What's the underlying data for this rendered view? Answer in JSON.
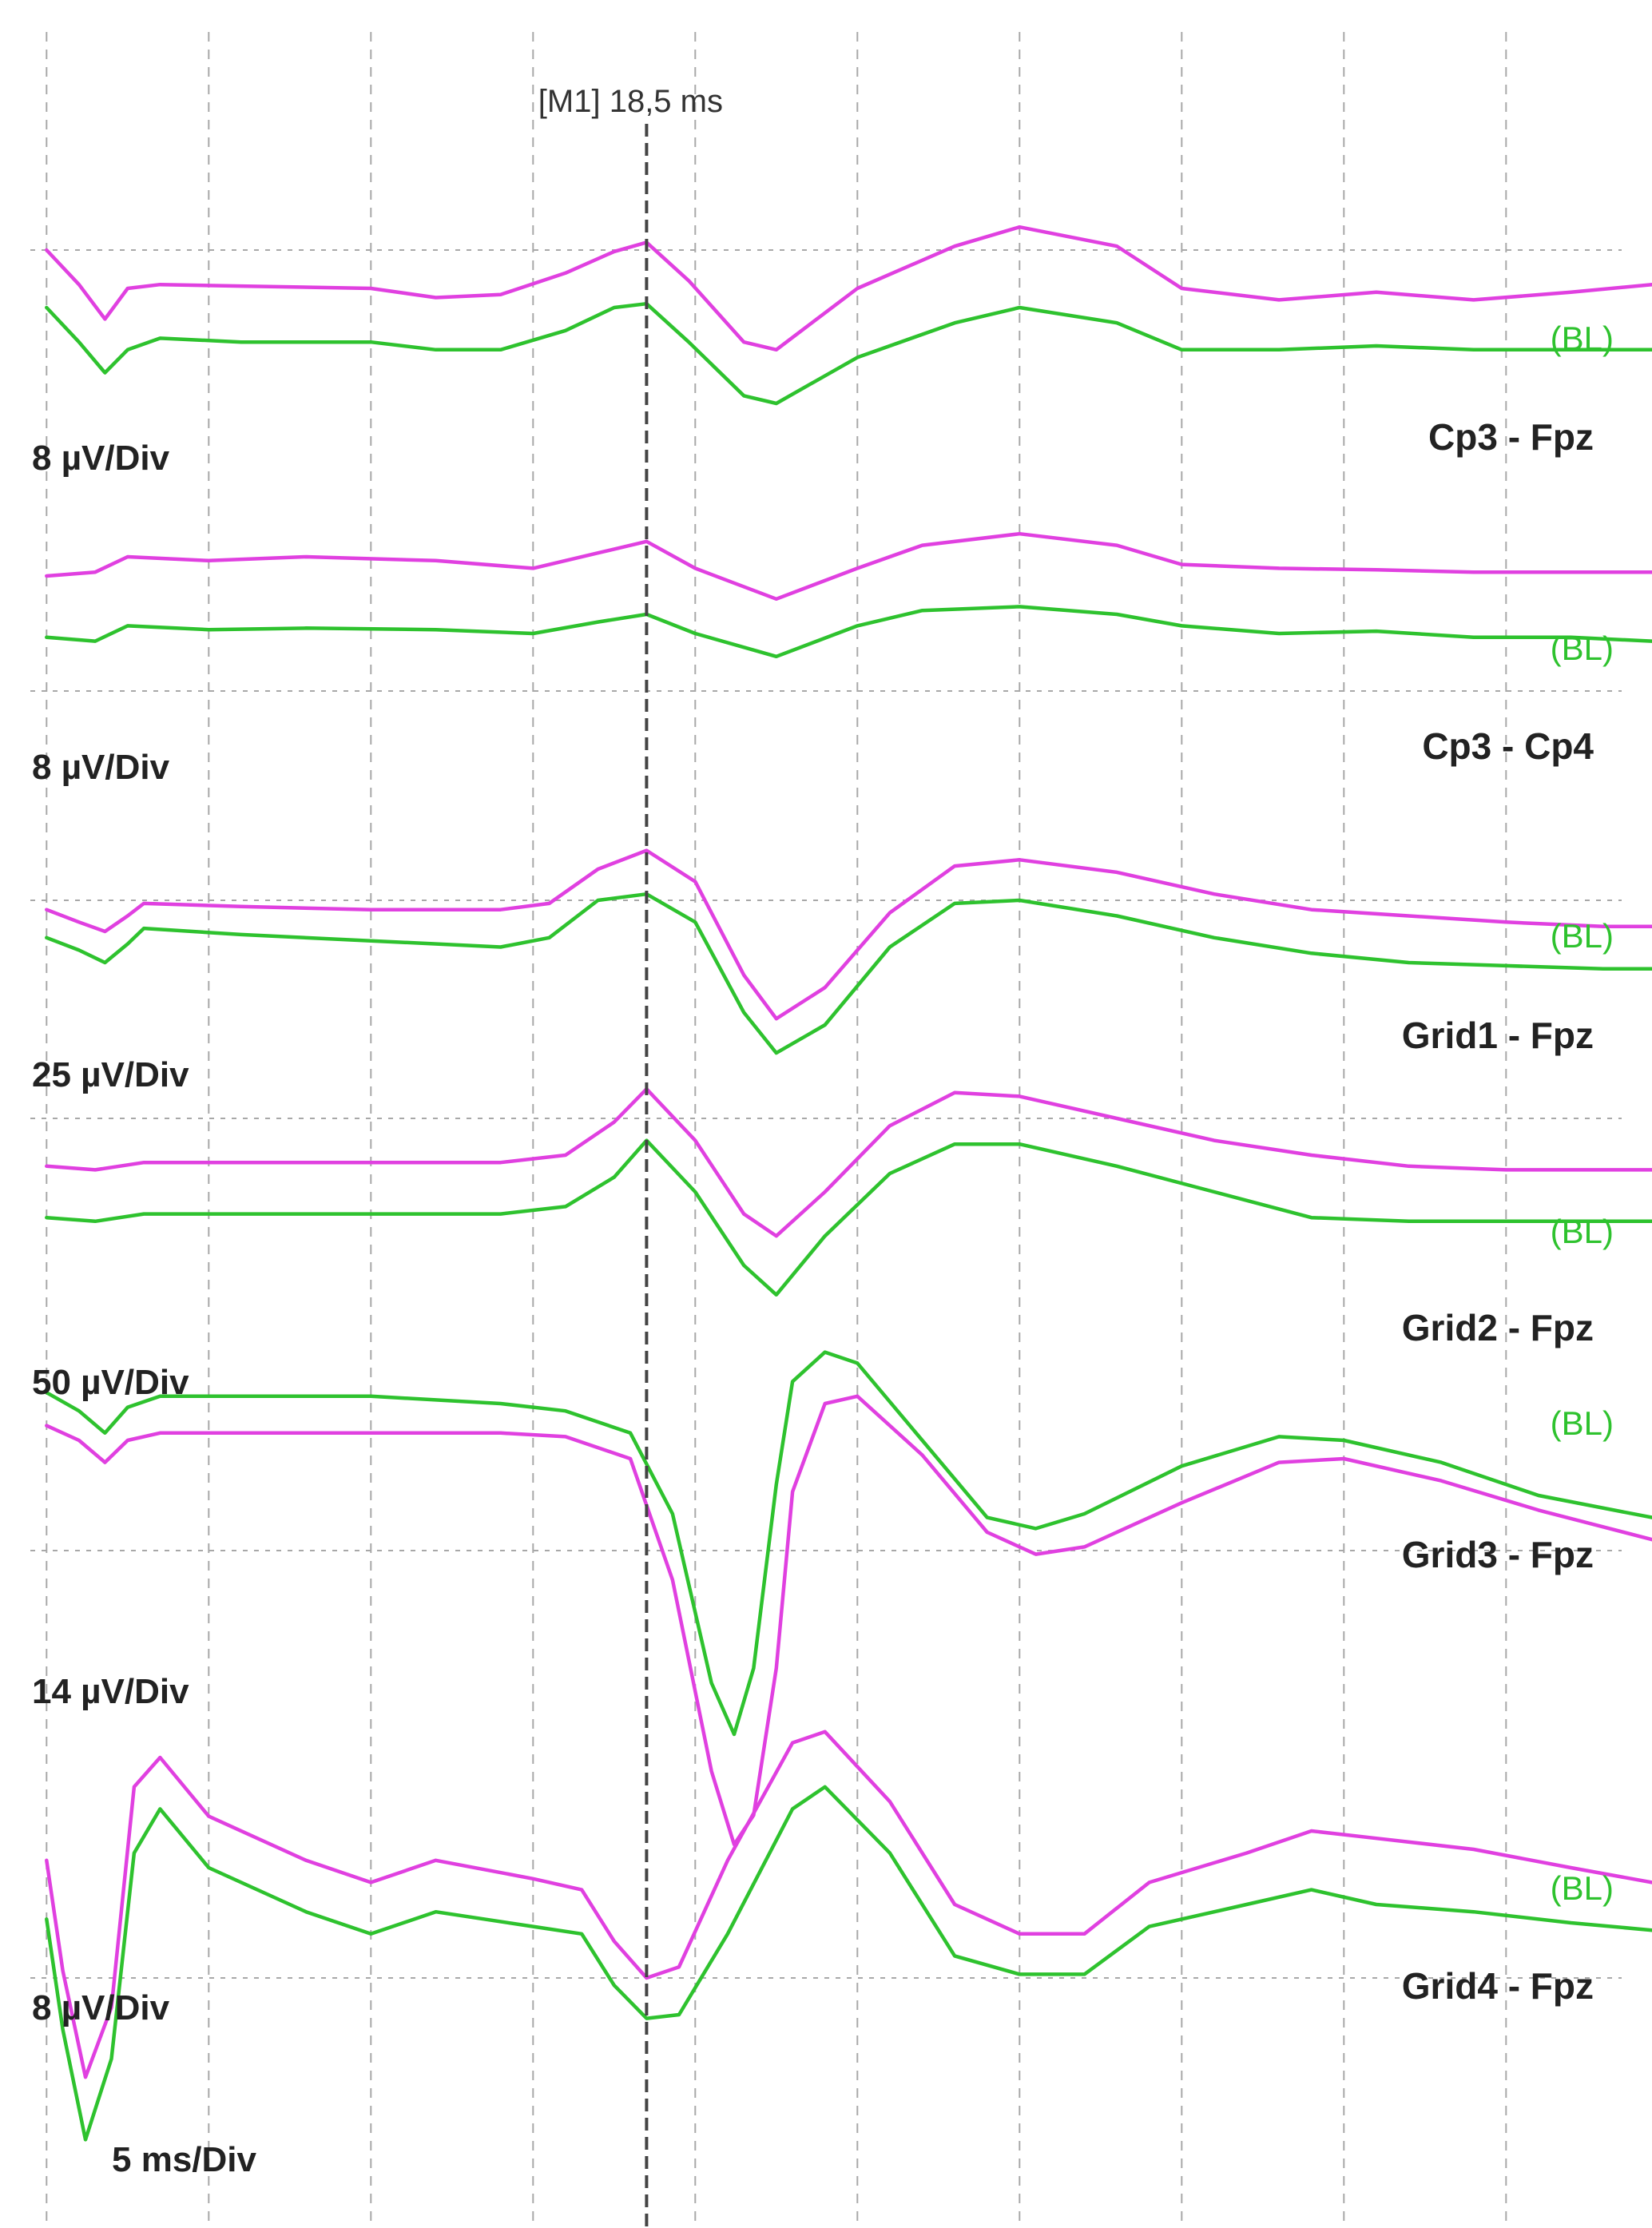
{
  "cursor": {
    "label": "[M1] 18,5 ms",
    "time_ms": 18.5
  },
  "time_base": {
    "label": "5 ms/Div",
    "ms_per_div": 5
  },
  "colors": {
    "trace_a": "#e040e0",
    "trace_b": "#2ec22e",
    "grid": "#a8a8a8",
    "cursor": "#444444",
    "text": "#222222"
  },
  "chart_data": {
    "type": "line",
    "x_unit": "ms",
    "xlim": [
      -0.5,
      49.5
    ],
    "grid": true,
    "channels": [
      {
        "name": "Cp3 - Fpz",
        "scale_label": "8 µV/Div",
        "baseline_label": "(BL)",
        "series": [
          {
            "color": "#e040e0",
            "x": [
              0,
              1,
              1.8,
              2.5,
              3.5,
              6,
              10,
              12,
              14,
              16,
              17.5,
              18.5,
              19.8,
              21.5,
              22.5,
              25,
              28,
              30,
              33,
              35,
              38,
              41,
              44,
              47,
              49.5
            ],
            "y": [
              0,
              -0.45,
              -0.9,
              -0.5,
              -0.45,
              -0.47,
              -0.5,
              -0.62,
              -0.58,
              -0.3,
              -0.02,
              0.1,
              -0.4,
              -1.2,
              -1.3,
              -0.5,
              0.05,
              0.3,
              0.05,
              -0.5,
              -0.65,
              -0.55,
              -0.65,
              -0.55,
              -0.45
            ]
          },
          {
            "color": "#2ec22e",
            "x": [
              0,
              1,
              1.8,
              2.5,
              3.5,
              6,
              10,
              12,
              14,
              16,
              17.5,
              18.5,
              19.8,
              21.5,
              22.5,
              25,
              28,
              30,
              33,
              35,
              38,
              41,
              44,
              47,
              49.5
            ],
            "y": [
              -0.75,
              -1.2,
              -1.6,
              -1.3,
              -1.15,
              -1.2,
              -1.2,
              -1.3,
              -1.3,
              -1.05,
              -0.75,
              -0.7,
              -1.2,
              -1.9,
              -2.0,
              -1.4,
              -0.95,
              -0.75,
              -0.95,
              -1.3,
              -1.3,
              -1.25,
              -1.3,
              -1.3,
              -1.3
            ]
          }
        ]
      },
      {
        "name": "Cp3 - Cp4",
        "scale_label": "8 µV/Div",
        "baseline_label": "(BL)",
        "series": [
          {
            "color": "#e040e0",
            "x": [
              0,
              1.5,
              2.5,
              5,
              8,
              12,
              15,
              17,
              18.5,
              20,
              22.5,
              25,
              27,
              30,
              33,
              35,
              38,
              41,
              44,
              47,
              49.5
            ],
            "y": [
              1.5,
              1.55,
              1.75,
              1.7,
              1.75,
              1.7,
              1.6,
              1.8,
              1.95,
              1.6,
              1.2,
              1.6,
              1.9,
              2.05,
              1.9,
              1.65,
              1.6,
              1.58,
              1.55,
              1.55,
              1.55
            ]
          },
          {
            "color": "#2ec22e",
            "x": [
              0,
              1.5,
              2.5,
              5,
              8,
              12,
              15,
              17,
              18.5,
              20,
              22.5,
              25,
              27,
              30,
              33,
              35,
              38,
              41,
              44,
              47,
              49.5
            ],
            "y": [
              0.7,
              0.65,
              0.85,
              0.8,
              0.82,
              0.8,
              0.75,
              0.9,
              1.0,
              0.75,
              0.45,
              0.85,
              1.05,
              1.1,
              1.0,
              0.85,
              0.75,
              0.78,
              0.7,
              0.7,
              0.65
            ]
          }
        ]
      },
      {
        "name": "Grid1 - Fpz",
        "scale_label": "25 µV/Div",
        "baseline_label": "(BL)",
        "series": [
          {
            "color": "#e040e0",
            "x": [
              0,
              1,
              1.8,
              2.5,
              3,
              6,
              10,
              14,
              15.5,
              17,
              18.5,
              20,
              21.5,
              22.5,
              24,
              26,
              28,
              30,
              33,
              36,
              39,
              42,
              45,
              48,
              49.5
            ],
            "y": [
              -0.15,
              -0.35,
              -0.5,
              -0.25,
              -0.05,
              -0.1,
              -0.15,
              -0.15,
              -0.05,
              0.5,
              0.8,
              0.3,
              -1.2,
              -1.9,
              -1.4,
              -0.2,
              0.55,
              0.65,
              0.45,
              0.1,
              -0.15,
              -0.25,
              -0.35,
              -0.42,
              -0.42
            ]
          },
          {
            "color": "#2ec22e",
            "x": [
              0,
              1,
              1.8,
              2.5,
              3,
              6,
              10,
              14,
              15.5,
              17,
              18.5,
              20,
              21.5,
              22.5,
              24,
              26,
              28,
              30,
              33,
              36,
              39,
              42,
              45,
              48,
              49.5
            ],
            "y": [
              -0.6,
              -0.8,
              -1.0,
              -0.7,
              -0.45,
              -0.55,
              -0.65,
              -0.75,
              -0.6,
              0.0,
              0.1,
              -0.35,
              -1.8,
              -2.45,
              -2.0,
              -0.75,
              -0.05,
              0.0,
              -0.25,
              -0.6,
              -0.85,
              -1.0,
              -1.05,
              -1.1,
              -1.1
            ]
          }
        ]
      },
      {
        "name": "Grid2 - Fpz",
        "scale_label": "50 µV/Div",
        "baseline_label": "(BL)",
        "series": [
          {
            "color": "#e040e0",
            "x": [
              0,
              1.5,
              3,
              6,
              10,
              14,
              16,
              17.5,
              18.5,
              20,
              21.5,
              22.5,
              24,
              26,
              28,
              30,
              33,
              36,
              39,
              42,
              45,
              49.5
            ],
            "y": [
              -0.65,
              -0.7,
              -0.6,
              -0.6,
              -0.6,
              -0.6,
              -0.5,
              -0.05,
              0.4,
              -0.3,
              -1.3,
              -1.6,
              -1.0,
              -0.1,
              0.35,
              0.3,
              0.0,
              -0.3,
              -0.5,
              -0.65,
              -0.7,
              -0.7
            ]
          },
          {
            "color": "#2ec22e",
            "x": [
              0,
              1.5,
              3,
              6,
              10,
              14,
              16,
              17.5,
              18.5,
              20,
              21.5,
              22.5,
              24,
              26,
              28,
              30,
              33,
              36,
              39,
              42,
              45,
              49.5
            ],
            "y": [
              -1.35,
              -1.4,
              -1.3,
              -1.3,
              -1.3,
              -1.3,
              -1.2,
              -0.8,
              -0.3,
              -1.0,
              -2.0,
              -2.4,
              -1.6,
              -0.75,
              -0.35,
              -0.35,
              -0.65,
              -1.0,
              -1.35,
              -1.4,
              -1.4,
              -1.4
            ]
          }
        ]
      },
      {
        "name": "Grid3 - Fpz",
        "scale_label": "14 µV/Div",
        "baseline_label": "(BL)",
        "series": [
          {
            "color": "#e040e0",
            "x": [
              0,
              1,
              1.8,
              2.5,
              3.5,
              6,
              10,
              14,
              16,
              18,
              19.3,
              20.5,
              21.2,
              21.8,
              22.5,
              23,
              24,
              25,
              27,
              29,
              30.5,
              32,
              35,
              38,
              40,
              43,
              46,
              49.5
            ],
            "y": [
              1.7,
              1.5,
              1.2,
              1.5,
              1.6,
              1.6,
              1.6,
              1.6,
              1.55,
              1.25,
              -0.4,
              -3.0,
              -4.0,
              -3.6,
              -1.6,
              0.8,
              2.0,
              2.1,
              1.3,
              0.25,
              -0.05,
              0.05,
              0.65,
              1.2,
              1.25,
              0.95,
              0.55,
              0.15
            ]
          },
          {
            "color": "#2ec22e",
            "x": [
              0,
              1,
              1.8,
              2.5,
              3.5,
              6,
              10,
              14,
              16,
              18,
              19.3,
              20.5,
              21.2,
              21.8,
              22.5,
              23,
              24,
              25,
              27,
              29,
              30.5,
              32,
              35,
              38,
              40,
              43,
              46,
              49.5
            ],
            "y": [
              2.15,
              1.9,
              1.6,
              1.95,
              2.1,
              2.1,
              2.1,
              2.0,
              1.9,
              1.6,
              0.5,
              -1.8,
              -2.5,
              -1.6,
              0.9,
              2.3,
              2.7,
              2.55,
              1.5,
              0.45,
              0.3,
              0.5,
              1.15,
              1.55,
              1.5,
              1.2,
              0.75,
              0.45
            ]
          }
        ]
      },
      {
        "name": "Grid4 - Fpz",
        "scale_label": "8 µV/Div",
        "baseline_label": "(BL)",
        "series": [
          {
            "color": "#e040e0",
            "x": [
              0,
              0.5,
              1.2,
              2,
              2.7,
              3.5,
              5,
              8,
              10,
              12,
              15,
              16.5,
              17.5,
              18.5,
              19.5,
              21,
              23,
              24,
              26,
              28,
              30,
              32,
              34,
              37,
              39,
              41,
              44,
              47,
              49.5
            ],
            "y": [
              1.6,
              0.1,
              -1.35,
              -0.4,
              2.6,
              3.0,
              2.2,
              1.6,
              1.3,
              1.6,
              1.35,
              1.2,
              0.5,
              0.0,
              0.15,
              1.6,
              3.2,
              3.35,
              2.4,
              1.0,
              0.6,
              0.6,
              1.3,
              1.7,
              2.0,
              1.9,
              1.75,
              1.5,
              1.3
            ]
          },
          {
            "color": "#2ec22e",
            "x": [
              0,
              0.5,
              1.2,
              2,
              2.7,
              3.5,
              5,
              8,
              10,
              12,
              15,
              16.5,
              17.5,
              18.5,
              19.5,
              21,
              23,
              24,
              26,
              28,
              30,
              32,
              34,
              37,
              39,
              41,
              44,
              47,
              49.5
            ],
            "y": [
              0.8,
              -0.7,
              -2.2,
              -1.1,
              1.7,
              2.3,
              1.5,
              0.9,
              0.6,
              0.9,
              0.7,
              0.6,
              -0.1,
              -0.55,
              -0.5,
              0.6,
              2.3,
              2.6,
              1.7,
              0.3,
              0.05,
              0.05,
              0.7,
              1.0,
              1.2,
              1.0,
              0.9,
              0.75,
              0.65
            ]
          }
        ]
      }
    ]
  }
}
